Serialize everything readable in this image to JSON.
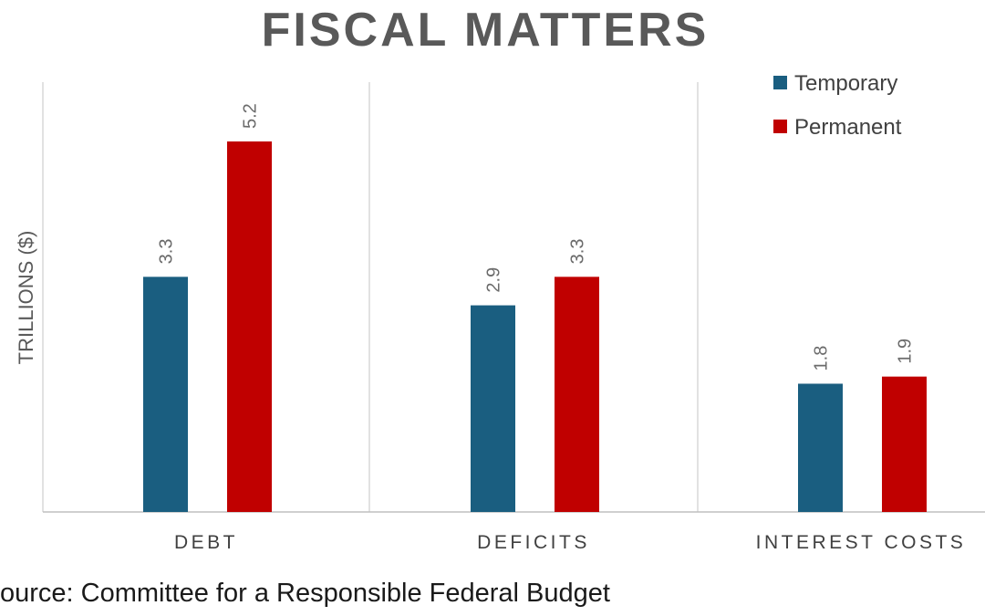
{
  "chart_data": {
    "type": "bar",
    "title": "FISCAL MATTERS",
    "xlabel": "",
    "ylabel": "TRILLIONS ($)",
    "categories": [
      "DEBT",
      "DEFICITS",
      "INTEREST COSTS"
    ],
    "series": [
      {
        "name": "Temporary",
        "color": "#1a5e80",
        "values": [
          3.3,
          2.9,
          1.8
        ]
      },
      {
        "name": "Permanent",
        "color": "#c00000",
        "values": [
          5.2,
          3.3,
          1.9
        ]
      }
    ],
    "data_labels": [
      [
        "3.3",
        "2.9",
        "1.8"
      ],
      [
        "5.2",
        "3.3",
        "1.9"
      ]
    ],
    "ylim": [
      0,
      6.0
    ],
    "grid": false,
    "legend": "top-right"
  },
  "source": "ource: Committee for a Responsible Federal Budget"
}
